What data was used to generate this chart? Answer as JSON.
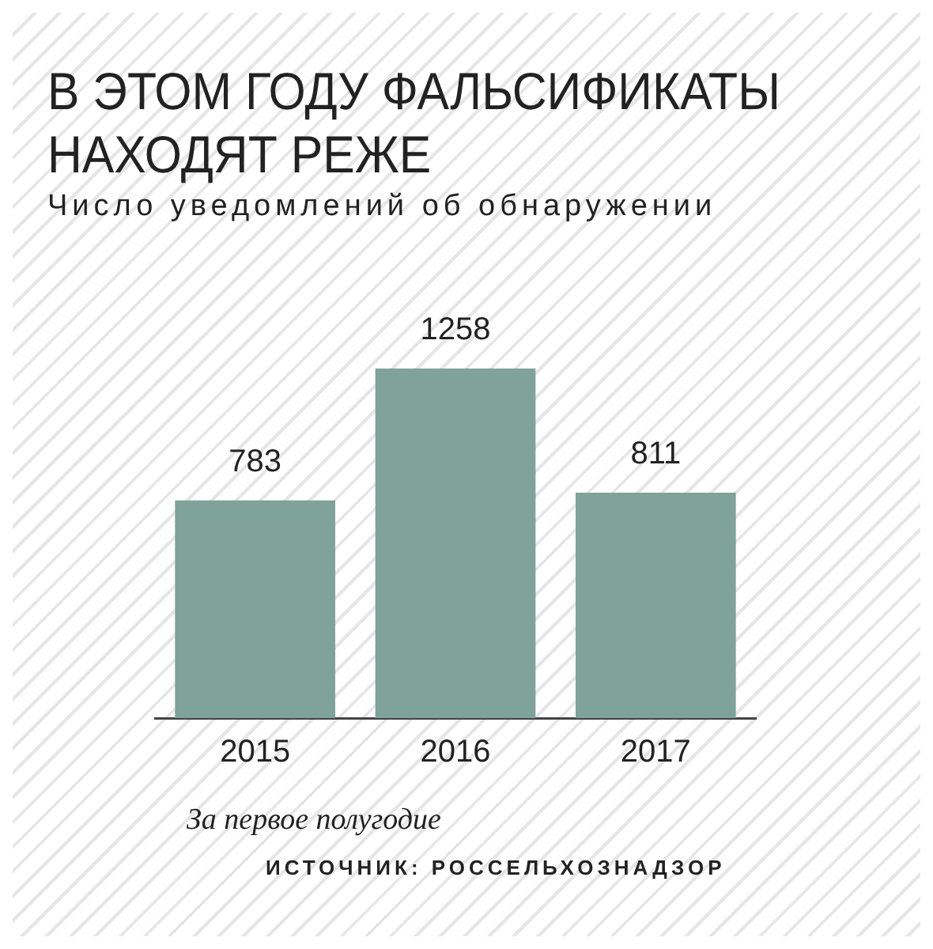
{
  "chart_data": {
    "type": "bar",
    "title": "В ЭТОМ ГОДУ ФАЛЬСИФИКАТЫ НАХОДЯТ РЕЖЕ",
    "subtitle": "Число уведомлений об обнаружении",
    "categories": [
      "2015",
      "2016",
      "2017"
    ],
    "values": [
      783,
      1258,
      811
    ],
    "color": "#7fa398",
    "data_labels": true,
    "legend": false,
    "annotations": [
      "За первое полугодие",
      "ИСТОЧНИК: РОССЕЛЬХОЗНАДЗОР"
    ]
  }
}
